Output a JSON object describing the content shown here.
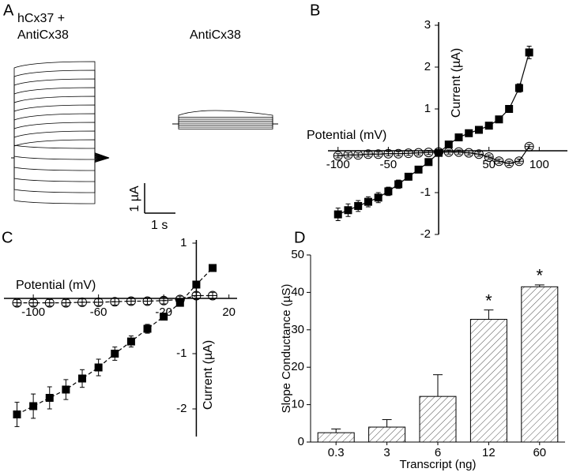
{
  "panel_a": {
    "label": "A",
    "trace_label_1": "hCx37 +",
    "trace_label_2": "AntiCx38",
    "trace_label_3": "AntiCx38",
    "scale_y": "1 µA",
    "scale_x": "1 s"
  },
  "chart_data": [
    {
      "type": "iv",
      "label": "B",
      "x_label": "Potential (mV)",
      "y_label": "Current (µA)",
      "xlim": [
        -110,
        128
      ],
      "ylim": [
        -2,
        3
      ],
      "xticks": [
        -100,
        -50,
        50,
        100
      ],
      "yticks": [
        -2,
        -1,
        1,
        2,
        3
      ],
      "x": [
        -100,
        -90,
        -80,
        -70,
        -60,
        -50,
        -40,
        -30,
        -20,
        -10,
        0,
        10,
        20,
        30,
        40,
        50,
        60,
        70,
        80,
        90
      ],
      "series": [
        {
          "color": "#000000",
          "marker": "square",
          "line_style": "solid",
          "values": [
            -1.52,
            -1.42,
            -1.32,
            -1.22,
            -1.12,
            -0.97,
            -0.8,
            -0.62,
            -0.45,
            -0.27,
            -0.05,
            0.15,
            0.32,
            0.42,
            0.5,
            0.6,
            0.75,
            1.0,
            1.5,
            2.35
          ],
          "errors": [
            0.15,
            0.15,
            0.13,
            0.12,
            0.12,
            0.1,
            0.1,
            0.08,
            0.06,
            0.05,
            0.05,
            0.05,
            0.05,
            0.05,
            0.05,
            0.06,
            0.07,
            0.08,
            0.1,
            0.15
          ]
        },
        {
          "color": "#000000",
          "marker": "circle",
          "line_style": "solid",
          "values": [
            -0.12,
            -0.1,
            -0.1,
            -0.08,
            -0.08,
            -0.07,
            -0.07,
            -0.06,
            -0.05,
            -0.04,
            -0.03,
            -0.03,
            -0.03,
            -0.05,
            -0.08,
            -0.15,
            -0.25,
            -0.3,
            -0.25,
            0.1
          ],
          "errors": [
            0.05,
            0.05,
            0.05,
            0.05,
            0.05,
            0.05,
            0.05,
            0.05,
            0.05,
            0.05,
            0.05,
            0.05,
            0.05,
            0.05,
            0.05,
            0.05,
            0.05,
            0.05,
            0.05,
            0.05
          ]
        }
      ]
    },
    {
      "type": "iv",
      "label": "C",
      "x_label": "Potential (mV)",
      "y_label": "Current (µA)",
      "xlim": [
        -118,
        25
      ],
      "ylim": [
        -2.5,
        1
      ],
      "xticks": [
        -100,
        -60,
        -20,
        20
      ],
      "yticks": [
        -2,
        -1,
        1
      ],
      "x": [
        -110,
        -100,
        -90,
        -80,
        -70,
        -60,
        -50,
        -40,
        -30,
        -20,
        -10,
        0,
        10
      ],
      "series": [
        {
          "color": "#000000",
          "marker": "square",
          "line_style": "dashed",
          "values": [
            -2.1,
            -1.95,
            -1.8,
            -1.65,
            -1.45,
            -1.25,
            -1.0,
            -0.78,
            -0.55,
            -0.33,
            -0.08,
            0.25,
            0.55
          ],
          "errors": [
            0.22,
            0.22,
            0.2,
            0.18,
            0.16,
            0.15,
            0.12,
            0.1,
            0.08,
            0.06,
            0.05,
            0.05,
            0.04
          ]
        },
        {
          "color": "#000000",
          "marker": "circle",
          "line_style": "dashed",
          "values": [
            -0.08,
            -0.08,
            -0.08,
            -0.08,
            -0.07,
            -0.07,
            -0.06,
            -0.05,
            -0.05,
            -0.04,
            -0.02,
            0.05,
            0.05
          ],
          "errors": [
            0.06,
            0.06,
            0.06,
            0.06,
            0.06,
            0.06,
            0.06,
            0.06,
            0.06,
            0.06,
            0.06,
            0.06,
            0.06
          ]
        }
      ]
    },
    {
      "type": "bar",
      "label": "D",
      "x_label": "Transcript (ng)",
      "y_label": "Slope Conductance (µS)",
      "categories": [
        "0.3",
        "3",
        "6",
        "12",
        "60"
      ],
      "values": [
        2.5,
        4,
        12.2,
        32.8,
        41.5
      ],
      "errors": [
        1,
        2,
        5.8,
        2.5,
        0.5
      ],
      "color": "#000000",
      "ylim": [
        0,
        50
      ],
      "yticks": [
        0,
        10,
        20,
        30,
        40,
        50
      ],
      "annotations": [
        {
          "text": "*",
          "x": "12"
        },
        {
          "text": "*",
          "x": "60"
        }
      ]
    }
  ]
}
